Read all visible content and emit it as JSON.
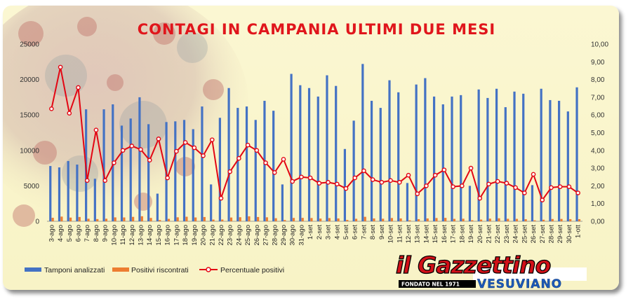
{
  "chart_data": {
    "type": "bar",
    "title": "CONTAGI IN CAMPANIA ULTIMI DUE MESI",
    "categories": [
      "3-ago",
      "4-ago",
      "5-ago",
      "6-ago",
      "7-ago",
      "8-ago",
      "9-ago",
      "10-ago",
      "11-ago",
      "12-ago",
      "13-ago",
      "14-ago",
      "15-ago",
      "16-ago",
      "17-ago",
      "18-ago",
      "19-ago",
      "20-ago",
      "21-ago",
      "22-ago",
      "23-ago",
      "24-ago",
      "25-ago",
      "26-ago",
      "27-ago",
      "28-ago",
      "29-ago",
      "30-ago",
      "31-ago",
      "1-set",
      "2-set",
      "3-set",
      "4-set",
      "5-set",
      "6-set",
      "7-set",
      "8-set",
      "9-set",
      "10-set",
      "11-set",
      "12-set",
      "13-set",
      "14-set",
      "15-set",
      "16-set",
      "17-set",
      "18-set",
      "19-set",
      "20-set",
      "21-set",
      "22-set",
      "23-set",
      "24-set",
      "25-set",
      "26-set",
      "27-set",
      "28-set",
      "29-set",
      "30-set",
      "1-ott"
    ],
    "series": [
      {
        "name": "Tamponi analizzati",
        "axis": "left",
        "color": "#4472c4",
        "values": [
          7800,
          7600,
          8500,
          8000,
          15800,
          6000,
          15800,
          16500,
          13500,
          14500,
          17500,
          13700,
          3900,
          14000,
          14100,
          14300,
          13000,
          16200,
          5200,
          14600,
          18800,
          16000,
          16200,
          14300,
          17000,
          15600,
          5200,
          20800,
          19200,
          18800,
          17600,
          20600,
          19100,
          10200,
          14200,
          22200,
          17000,
          16000,
          19900,
          18200,
          5400,
          19300,
          20200,
          17600,
          16500,
          17600,
          17800,
          5000,
          18600,
          17400,
          18700,
          16100,
          18300,
          18000,
          5100,
          18700,
          17100,
          17000,
          15500,
          18900
        ]
      },
      {
        "name": "Positivi riscontrati",
        "axis": "left",
        "color": "#ed7d31",
        "values": [
          495,
          660,
          520,
          605,
          360,
          310,
          360,
          550,
          540,
          620,
          710,
          470,
          180,
          340,
          560,
          640,
          540,
          600,
          240,
          245,
          530,
          570,
          700,
          600,
          560,
          430,
          180,
          470,
          480,
          460,
          380,
          450,
          400,
          190,
          350,
          630,
          400,
          360,
          460,
          400,
          140,
          300,
          400,
          460,
          480,
          340,
          360,
          150,
          240,
          370,
          420,
          350,
          340,
          290,
          135,
          220,
          320,
          330,
          300,
          300
        ]
      },
      {
        "name": "Percentuale positivi",
        "axis": "right",
        "type": "line",
        "color": "#e30613",
        "values": [
          6.35,
          8.7,
          6.1,
          7.55,
          2.3,
          5.15,
          2.3,
          3.3,
          4.0,
          4.25,
          4.05,
          3.45,
          4.65,
          2.45,
          3.95,
          4.45,
          4.15,
          3.7,
          4.6,
          1.3,
          2.8,
          3.55,
          4.3,
          4.0,
          3.3,
          2.75,
          3.5,
          2.25,
          2.5,
          2.45,
          2.15,
          2.2,
          2.1,
          1.85,
          2.45,
          2.85,
          2.35,
          2.2,
          2.3,
          2.2,
          2.6,
          1.55,
          2.0,
          2.6,
          2.9,
          1.95,
          2.0,
          3.0,
          1.3,
          2.1,
          2.25,
          2.15,
          1.9,
          1.6,
          2.65,
          1.2,
          1.9,
          1.95,
          1.95,
          1.6
        ]
      }
    ],
    "y_left": {
      "ticks": [
        "0",
        "5000",
        "10000",
        "15000",
        "20000",
        "25000"
      ],
      "range": [
        0,
        25000
      ]
    },
    "y_right": {
      "ticks": [
        "0,00",
        "1,00",
        "2,00",
        "3,00",
        "4,00",
        "5,00",
        "6,00",
        "7,00",
        "8,00",
        "9,00",
        "10,00"
      ],
      "range": [
        0,
        10
      ]
    },
    "grid": false,
    "legend_position": "bottom-left"
  },
  "legend": {
    "tamponi": "Tamponi analizzati",
    "positivi": "Positivi riscontrati",
    "percentuale": "Percentuale positivi"
  },
  "logo": {
    "name": "il Gazzettino",
    "subtitle": "VESUVIANO",
    "founded": "FONDATO NEL 1971"
  }
}
